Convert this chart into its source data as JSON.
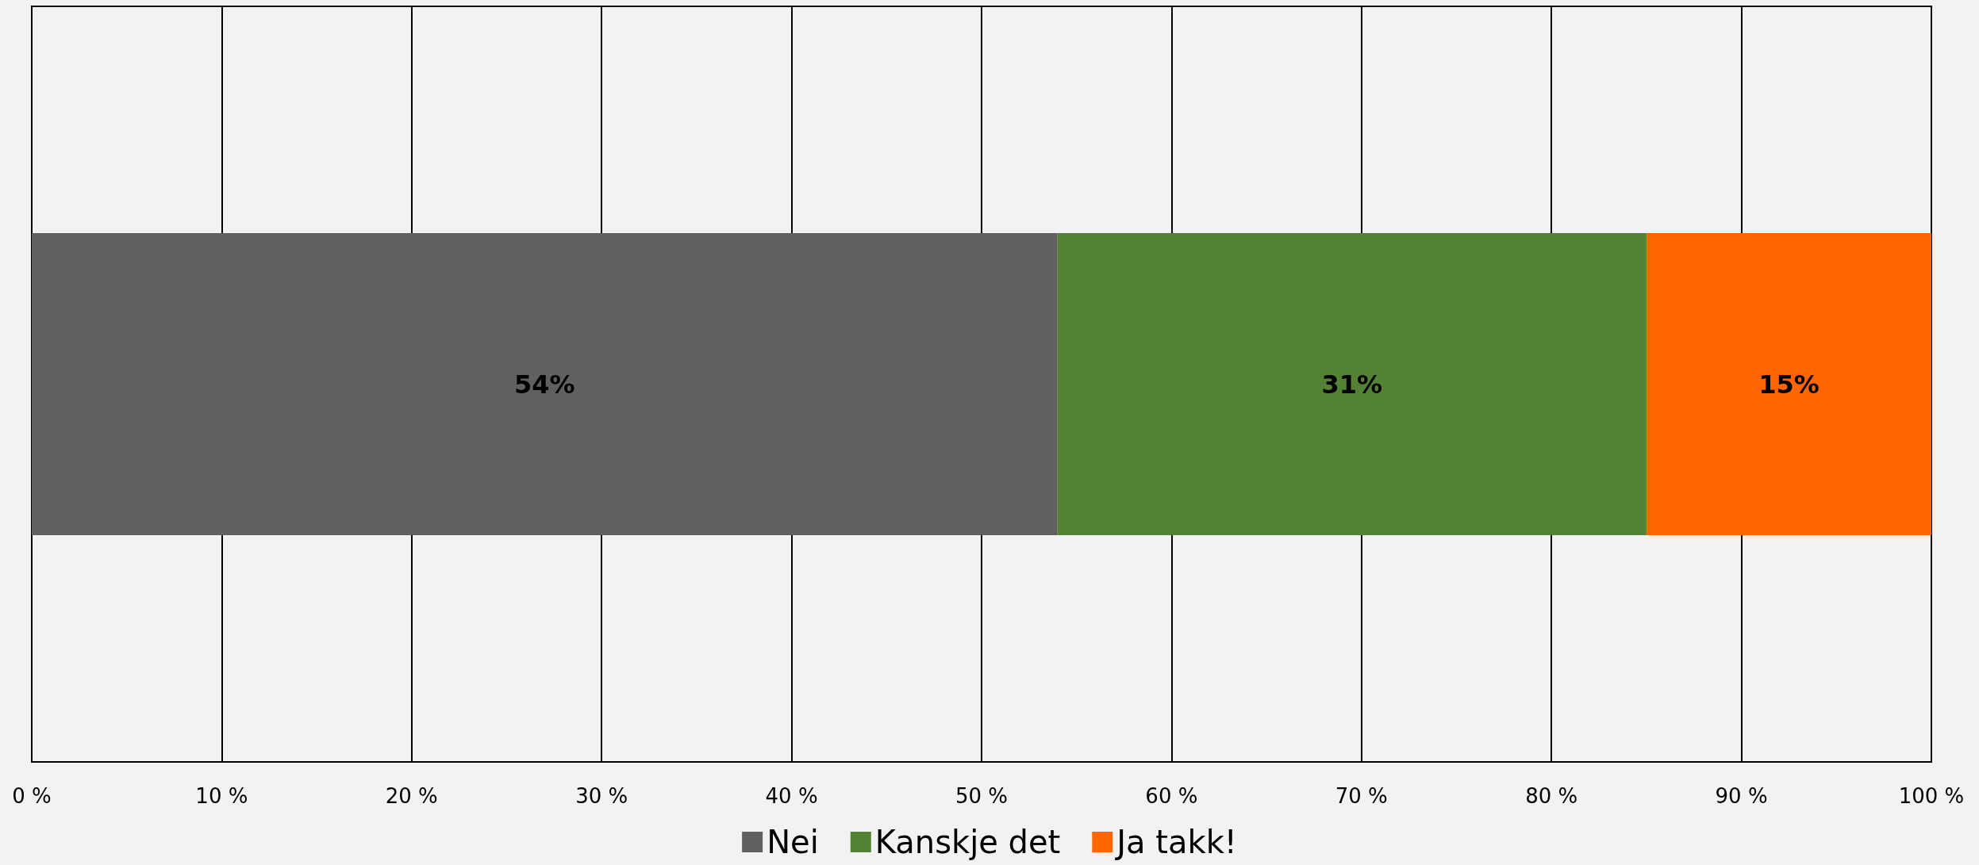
{
  "chart_data": {
    "type": "bar",
    "orientation": "horizontal",
    "stacked": true,
    "categories": [
      null
    ],
    "series": [
      {
        "name": "Nei",
        "color": "#606060",
        "values": [
          54
        ],
        "value_labels": [
          "54%"
        ]
      },
      {
        "name": "Kanskje det",
        "color": "#548235",
        "values": [
          31
        ],
        "value_labels": [
          "31%"
        ]
      },
      {
        "name": "Ja takk!",
        "color": "#ff6600",
        "values": [
          15
        ],
        "value_labels": [
          "15%"
        ]
      }
    ],
    "xlim": [
      0,
      100
    ],
    "xticks": [
      {
        "value": 0,
        "label": "0 %"
      },
      {
        "value": 10,
        "label": "10 %"
      },
      {
        "value": 20,
        "label": "20 %"
      },
      {
        "value": 30,
        "label": "30 %"
      },
      {
        "value": 40,
        "label": "40 %"
      },
      {
        "value": 50,
        "label": "50 %"
      },
      {
        "value": 60,
        "label": "60 %"
      },
      {
        "value": 70,
        "label": "70 %"
      },
      {
        "value": 80,
        "label": "80 %"
      },
      {
        "value": 90,
        "label": "90 %"
      },
      {
        "value": 100,
        "label": "100 %"
      }
    ],
    "grid": "x",
    "legend": "bottom"
  }
}
